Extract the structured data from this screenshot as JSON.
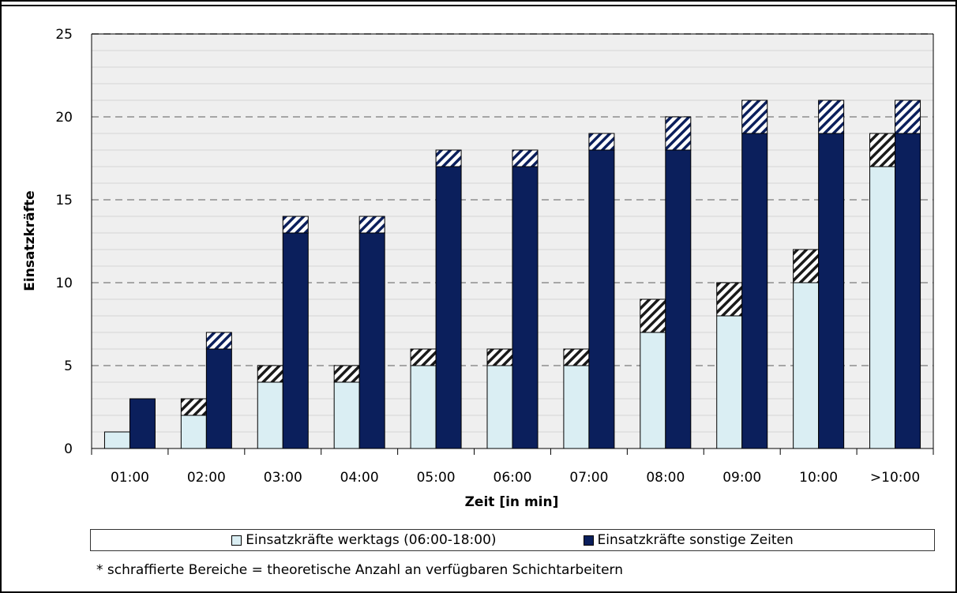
{
  "chart_data": {
    "type": "bar",
    "categories": [
      "01:00",
      "02:00",
      "03:00",
      "04:00",
      "05:00",
      "06:00",
      "07:00",
      "08:00",
      "09:00",
      "10:00",
      ">10:00"
    ],
    "series": [
      {
        "name": "Einsatzkräfte werktags (06:00-18:00)",
        "color": "#daeef3",
        "hatch_color": "#1a1a1a",
        "values": [
          1,
          2,
          4,
          4,
          5,
          5,
          5,
          7,
          8,
          10,
          17
        ],
        "hatched": [
          0,
          1,
          1,
          1,
          1,
          1,
          1,
          2,
          2,
          2,
          2
        ]
      },
      {
        "name": "Einsatzkräfte sonstige Zeiten",
        "color": "#0b1f5c",
        "hatch_color": "#0b1f5c",
        "values": [
          3,
          6,
          13,
          13,
          17,
          17,
          18,
          18,
          19,
          19,
          19
        ],
        "hatched": [
          0,
          1,
          1,
          1,
          1,
          1,
          1,
          2,
          2,
          2,
          2
        ]
      }
    ],
    "xlabel": "Zeit [in min]",
    "ylabel": "Einsatzkräfte",
    "ylim": [
      0,
      25
    ],
    "yticks": [
      0,
      5,
      10,
      15,
      20,
      25
    ],
    "grid": "dashed major + light minor",
    "legend": "bottom",
    "footnote": "* schraffierte Bereiche = theoretische Anzahl an verfügbaren Schichtarbeitern",
    "plot_background": "#efefef"
  }
}
